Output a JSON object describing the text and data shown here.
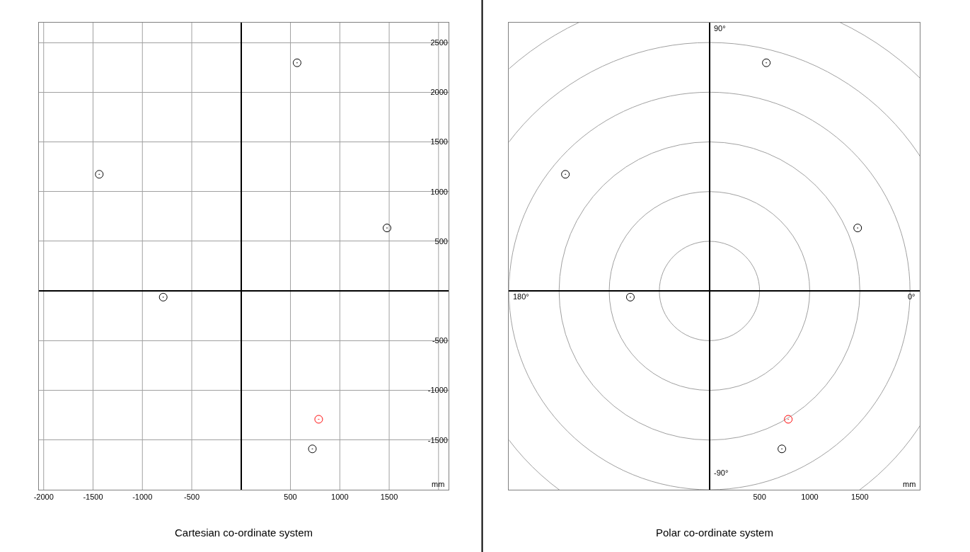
{
  "chart_data": [
    {
      "type": "scatter",
      "title": "Cartesian co-ordinate system",
      "x": [
        567,
        -1437,
        1478,
        -789,
        786,
        722
      ],
      "values": [
        2296,
        1174,
        634,
        -62,
        -1291,
        -1589
      ],
      "colors": [
        "#000000",
        "#000000",
        "#000000",
        "#000000",
        "#ff0000",
        "#000000"
      ],
      "marker": "circle",
      "xlim": [
        -2050,
        2100
      ],
      "ylim": [
        -2000,
        2700
      ],
      "xticks": [
        -2000,
        -1500,
        -1000,
        -500,
        {
          "value": 0,
          "label": null
        },
        500,
        1000,
        1500,
        {
          "value": 2000,
          "label": null
        }
      ],
      "yticks": [
        2500,
        2000,
        1500,
        1000,
        500,
        {
          "value": 0,
          "label": null
        },
        -500,
        -1000,
        -1500
      ],
      "grid": true,
      "annotations": [
        "mm"
      ]
    },
    {
      "type": "scatter",
      "title": "Polar co-ordinate system",
      "x": [
        567,
        -1437,
        1478,
        -789,
        786,
        722
      ],
      "values": [
        2296,
        1174,
        634,
        -62,
        -1291,
        -1589
      ],
      "colors": [
        "#000000",
        "#000000",
        "#000000",
        "#000000",
        "#ff0000",
        "#000000"
      ],
      "marker": "circle",
      "xlim": [
        -2000,
        2100
      ],
      "ylim": [
        -2000,
        2700
      ],
      "xticks": [
        500,
        1000,
        1500
      ],
      "grid": true,
      "tick_labels": "x",
      "annotations": [
        "mm",
        "90°",
        "180°",
        "0°",
        "-90°"
      ]
    }
  ]
}
